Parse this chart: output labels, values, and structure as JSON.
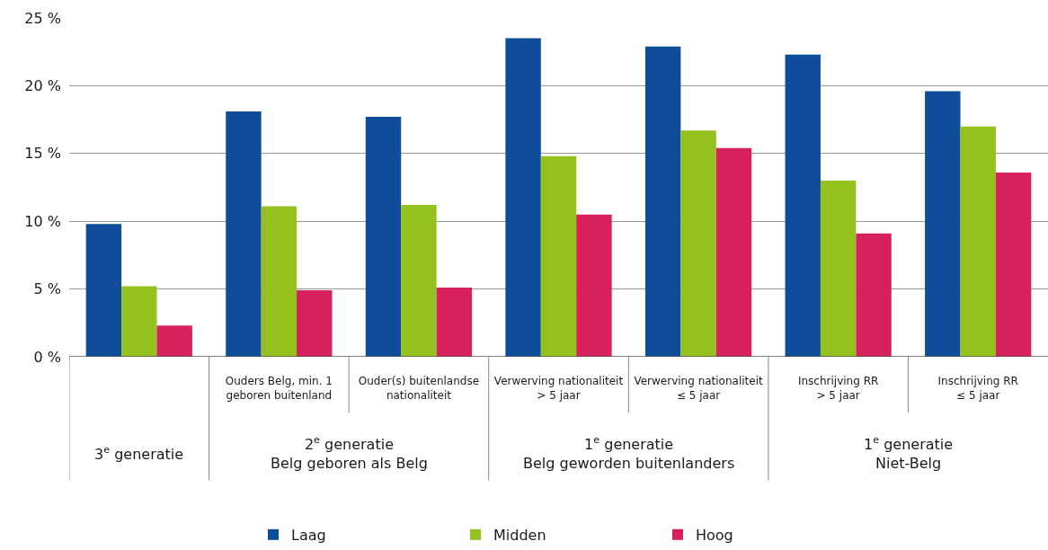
{
  "chart_data": {
    "type": "bar",
    "categories": [
      null,
      "Ouders Belg, min. 1\ngeboren buitenland",
      "Ouder(s) buitenlandse\nnationaliteit",
      "Verwerving nationaliteit\n> 5 jaar",
      "Verwerving nationaliteit\n≤ 5 jaar",
      "Inschrijving RR\n> 5 jaar",
      "Inschrijving RR\n≤ 5 jaar"
    ],
    "series": [
      {
        "name": "Laag",
        "color": "#0f4c9a",
        "values": [
          9.8,
          18.1,
          17.7,
          23.5,
          22.9,
          22.3,
          19.6
        ]
      },
      {
        "name": "Midden",
        "color": "#95c11f",
        "values": [
          5.2,
          11.1,
          11.2,
          14.8,
          16.7,
          13.0,
          17.0
        ]
      },
      {
        "name": "Hoog",
        "color": "#d6215c",
        "values": [
          2.3,
          4.9,
          5.1,
          10.5,
          15.4,
          9.1,
          13.6
        ]
      }
    ],
    "ylim": [
      0,
      25
    ],
    "yticks": [
      {
        "value": 0,
        "label": "0 %"
      },
      {
        "value": 5,
        "label": "5 %"
      },
      {
        "value": 10,
        "label": "10 %"
      },
      {
        "value": 15,
        "label": "15 %"
      },
      {
        "value": 20,
        "label": "20 %"
      },
      {
        "value": 25,
        "label": "25 %"
      }
    ],
    "annotations": [
      "3$^{e}$ generatie",
      "2$^{e}$ generatie\nBelg geboren als Belg",
      "1$^{e}$ generatie\nBelg geworden buitenlanders",
      "1$^{e}$ generatie\nNiet-Belg"
    ],
    "grid": "y",
    "legend": "bottom"
  }
}
